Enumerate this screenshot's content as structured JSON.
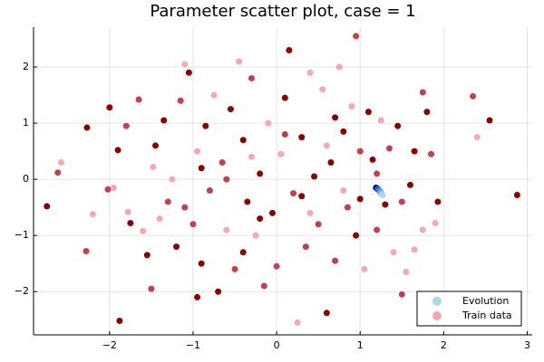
{
  "chart_data": {
    "type": "scatter",
    "title": "Parameter scatter plot, case = 1",
    "xlim": [
      -2.91,
      3.06
    ],
    "ylim": [
      -2.77,
      2.71
    ],
    "xticks": [
      {
        "value": -2,
        "label": "−2"
      },
      {
        "value": -1,
        "label": "−1"
      },
      0,
      1,
      2,
      3
    ],
    "yticks": [
      {
        "value": -2,
        "label": "−2"
      },
      {
        "value": -1,
        "label": "−1"
      },
      0,
      1,
      2
    ],
    "grid": true,
    "legend": "bottom-right",
    "series": [
      {
        "name": "Evolution",
        "color": "#add8e6",
        "x": [
          1.19,
          1.2,
          1.21,
          1.21,
          1.22,
          1.23,
          1.24,
          1.25,
          1.26,
          1.27
        ],
        "values": [
          -0.15,
          -0.16,
          -0.17,
          -0.18,
          -0.19,
          -0.2,
          -0.22,
          -0.24,
          -0.26,
          -0.28
        ],
        "colors": [
          "#00008b",
          "#0a1a99",
          "#1533a6",
          "#204db3",
          "#2b66bf",
          "#3d80c9",
          "#5599d3",
          "#6fb2dc",
          "#8dc6e2",
          "#add8e6"
        ]
      },
      {
        "name": "Train data",
        "color": "#f4a9b1",
        "x": [
          -2.75,
          -2.62,
          -2.58,
          -2.27,
          -2.28,
          -2.2,
          -2.0,
          -2.02,
          -1.95,
          -1.9,
          -1.88,
          -1.8,
          -1.78,
          -1.75,
          -1.65,
          -1.6,
          -1.55,
          -1.5,
          -1.48,
          -1.45,
          -1.35,
          -1.3,
          -1.25,
          -1.2,
          -1.15,
          -1.1,
          -1.05,
          -1.0,
          -0.95,
          -0.9,
          -0.85,
          -0.8,
          -0.75,
          -0.7,
          -0.65,
          -0.6,
          -0.55,
          -0.5,
          -0.45,
          -0.4,
          -0.35,
          -0.3,
          -0.25,
          -0.2,
          -0.15,
          -0.1,
          -0.05,
          0.0,
          0.05,
          0.1,
          0.15,
          0.2,
          0.25,
          0.3,
          0.35,
          0.4,
          0.45,
          0.5,
          0.55,
          0.6,
          0.65,
          0.7,
          0.75,
          0.8,
          0.85,
          0.9,
          0.95,
          1.0,
          1.05,
          1.1,
          1.15,
          1.2,
          1.25,
          1.3,
          1.35,
          1.4,
          1.45,
          1.5,
          1.55,
          1.6,
          1.65,
          1.75,
          1.75,
          1.8,
          1.85,
          1.9,
          1.93,
          2.35,
          2.4,
          2.55,
          2.88,
          0.95,
          -0.3,
          0.3,
          -0.6,
          0.6,
          -0.2,
          0.1,
          0.8,
          -0.9,
          1.0,
          -1.1,
          0.4,
          -0.4,
          1.2,
          -1.4,
          0.7,
          1.5,
          1.65,
          -0.95
        ],
        "values": [
          -0.48,
          0.12,
          0.3,
          0.92,
          -1.28,
          -0.62,
          1.28,
          -0.18,
          -0.15,
          0.52,
          -2.52,
          0.95,
          -0.58,
          -0.78,
          1.42,
          -0.92,
          -1.35,
          -1.95,
          0.22,
          0.6,
          1.05,
          -0.4,
          0.0,
          -1.2,
          1.4,
          2.05,
          1.9,
          -0.8,
          0.5,
          -1.5,
          0.95,
          -0.2,
          1.5,
          -2.0,
          0.3,
          -0.9,
          1.25,
          -1.6,
          2.1,
          0.7,
          -0.4,
          1.8,
          -1.0,
          0.1,
          -1.9,
          1.0,
          -0.6,
          -1.55,
          0.45,
          1.45,
          2.3,
          -0.25,
          -2.55,
          0.75,
          -1.2,
          1.9,
          0.05,
          -0.8,
          1.6,
          -2.38,
          0.3,
          -1.45,
          2.0,
          0.85,
          -0.5,
          1.3,
          -1.0,
          0.5,
          -1.6,
          1.2,
          0.35,
          -0.9,
          1.05,
          -0.45,
          0.55,
          -1.3,
          0.95,
          -0.4,
          -1.65,
          -0.1,
          0.5,
          1.55,
          -0.9,
          1.2,
          0.45,
          -0.78,
          -0.4,
          1.48,
          0.75,
          1.05,
          -0.28,
          2.55,
          0.4,
          -0.3,
          0.0,
          0.6,
          -0.7,
          0.8,
          -0.2,
          0.2,
          -0.35,
          -0.5,
          -0.6,
          -1.3,
          0.1,
          -0.7,
          1.1,
          -2.05,
          -1.25,
          -2.1
        ],
        "colors": [
          "#8b0000",
          "#c0414c",
          "#f4a9b1",
          "#8b0000",
          "#c0414c",
          "#f4a9b1",
          "#8b0000",
          "#c0414c",
          "#f4a9b1",
          "#8b0000",
          "#8b0000",
          "#c0414c",
          "#f4a9b1",
          "#8b0000",
          "#c0414c",
          "#f4a9b1",
          "#8b0000",
          "#c0414c",
          "#f4a9b1",
          "#8b0000",
          "#8b0000",
          "#c0414c",
          "#f4a9b1",
          "#8b0000",
          "#c0414c",
          "#f4a9b1",
          "#8b0000",
          "#c0414c",
          "#f4a9b1",
          "#8b0000",
          "#8b0000",
          "#c0414c",
          "#f4a9b1",
          "#8b0000",
          "#c0414c",
          "#f4a9b1",
          "#8b0000",
          "#c0414c",
          "#f4a9b1",
          "#8b0000",
          "#8b0000",
          "#c0414c",
          "#f4a9b1",
          "#8b0000",
          "#c0414c",
          "#f4a9b1",
          "#8b0000",
          "#c0414c",
          "#f4a9b1",
          "#8b0000",
          "#8b0000",
          "#c0414c",
          "#f4a9b1",
          "#8b0000",
          "#c0414c",
          "#f4a9b1",
          "#8b0000",
          "#c0414c",
          "#f4a9b1",
          "#8b0000",
          "#8b0000",
          "#c0414c",
          "#f4a9b1",
          "#8b0000",
          "#c0414c",
          "#f4a9b1",
          "#8b0000",
          "#c0414c",
          "#f4a9b1",
          "#8b0000",
          "#8b0000",
          "#c0414c",
          "#f4a9b1",
          "#8b0000",
          "#c0414c",
          "#f4a9b1",
          "#8b0000",
          "#c0414c",
          "#f4a9b1",
          "#8b0000",
          "#8b0000",
          "#c0414c",
          "#f4a9b1",
          "#8b0000",
          "#c0414c",
          "#f4a9b1",
          "#8b0000",
          "#c0414c",
          "#f4a9b1",
          "#8b0000",
          "#8b0000",
          "#c0414c",
          "#f4a9b1",
          "#8b0000",
          "#c0414c",
          "#f4a9b1",
          "#8b0000",
          "#c0414c",
          "#f4a9b1",
          "#8b0000",
          "#8b0000",
          "#c0414c",
          "#f4a9b1",
          "#8b0000",
          "#c0414c",
          "#f4a9b1",
          "#8b0000",
          "#c0414c",
          "#f4a9b1",
          "#8b0000"
        ]
      }
    ]
  }
}
